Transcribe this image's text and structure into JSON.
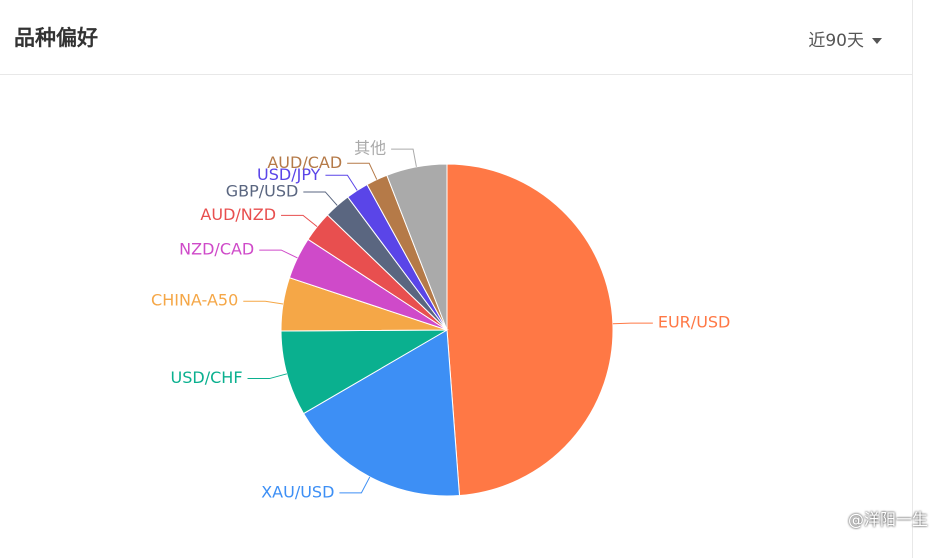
{
  "header": {
    "title": "品种偏好",
    "range": "近90天"
  },
  "watermark": "@洋阳一生",
  "chart_data": {
    "type": "pie",
    "categories": [
      "EUR/USD",
      "XAU/USD",
      "USD/CHF",
      "CHINA-A50",
      "NZD/CAD",
      "AUD/NZD",
      "GBP/USD",
      "USD/JPY",
      "AUD/CAD",
      "其他"
    ],
    "values": [
      48.8,
      17.8,
      8.3,
      5.2,
      4.1,
      3.0,
      2.6,
      2.2,
      2.1,
      5.9
    ],
    "colors": [
      "#ff7845",
      "#3d8ff5",
      "#0ab08f",
      "#f5a747",
      "#cf4ac9",
      "#e84f4f",
      "#5a6680",
      "#5a45e8",
      "#b57a48",
      "#aaaaaa"
    ]
  }
}
